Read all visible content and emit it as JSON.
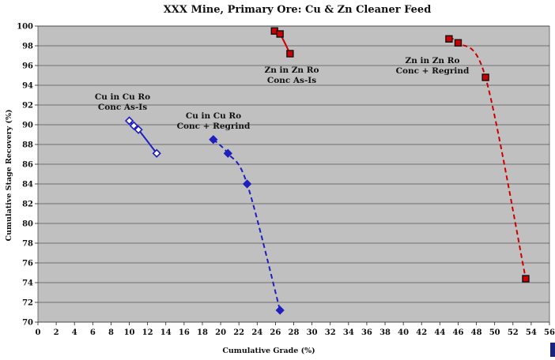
{
  "chart_data": {
    "type": "line",
    "title": "XXX Mine, Primary Ore: Cu & Zn Cleaner Feed",
    "xlabel": "Cumulative Grade (%)",
    "ylabel": "Cumulative Stage Recovery (%)",
    "xlim": [
      0,
      56
    ],
    "ylim": [
      70,
      100
    ],
    "x_ticks": [
      0,
      2,
      4,
      6,
      8,
      10,
      12,
      14,
      16,
      18,
      20,
      22,
      24,
      26,
      28,
      30,
      32,
      34,
      36,
      38,
      40,
      42,
      44,
      46,
      48,
      50,
      52,
      54,
      56
    ],
    "y_ticks": [
      70,
      72,
      74,
      76,
      78,
      80,
      82,
      84,
      86,
      88,
      90,
      92,
      94,
      96,
      98,
      100
    ],
    "grid": "horizontal",
    "background": "#c0c0c0",
    "series": [
      {
        "annotation": [
          "Cu in Cu Ro",
          "Conc As-Is"
        ],
        "color": "#1f1fbf",
        "marker": "diamond",
        "marker_fill": "#ffffff",
        "line": "solid",
        "points": [
          [
            10.0,
            90.4
          ],
          [
            10.5,
            89.9
          ],
          [
            11.0,
            89.5
          ],
          [
            13.0,
            87.1
          ]
        ]
      },
      {
        "annotation": [
          "Cu in Cu Ro",
          "Conc + Regrind"
        ],
        "color": "#1f1fbf",
        "marker": "diamond",
        "marker_fill": "#1f1fbf",
        "line": "dashed",
        "points": [
          [
            19.2,
            88.5
          ],
          [
            20.8,
            87.1
          ],
          [
            22.9,
            84.0
          ],
          [
            26.5,
            71.2
          ]
        ]
      },
      {
        "annotation": [
          "Zn in Zn Ro",
          "Conc As-Is"
        ],
        "color": "#cc0000",
        "marker": "square",
        "marker_fill": "#cc0000",
        "line": "solid",
        "points": [
          [
            25.9,
            99.5
          ],
          [
            26.5,
            99.2
          ],
          [
            27.6,
            97.2
          ]
        ]
      },
      {
        "annotation": [
          "Zn in Zn Ro",
          "Conc + Regrind"
        ],
        "color": "#cc0000",
        "marker": "square",
        "marker_fill": "#cc0000",
        "line": "dashed",
        "points": [
          [
            45.0,
            98.7
          ],
          [
            46.0,
            98.3
          ],
          [
            49.0,
            94.8
          ],
          [
            53.4,
            74.4
          ]
        ]
      }
    ]
  }
}
